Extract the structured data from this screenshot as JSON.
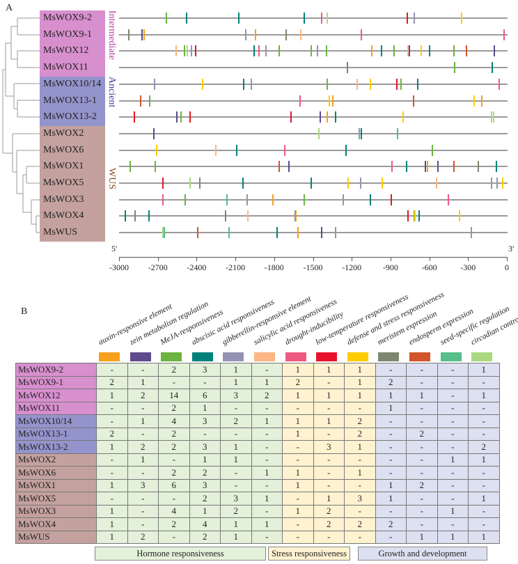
{
  "panel_a_label": "A",
  "panel_b_label": "B",
  "axis": {
    "start_label": "5'",
    "end_label": "3'",
    "min": -3000,
    "max": 0,
    "ticks": [
      "-3000",
      "-2700",
      "-2400",
      "-2100",
      "-1800",
      "-1500",
      "-1200",
      "-900",
      "-600",
      "-300",
      "0"
    ]
  },
  "groups": [
    {
      "name": "Intermediate",
      "color": "#D88FCE",
      "text_color": "#B43AA6",
      "rows": [
        0,
        3
      ]
    },
    {
      "name": "Ancient",
      "color": "#9494CC",
      "text_color": "#3A3A9A",
      "rows": [
        4,
        6
      ]
    },
    {
      "name": "WUS",
      "color": "#C4A19E",
      "text_color": "#8A4A1A",
      "rows": [
        7,
        13
      ]
    }
  ],
  "elements": [
    {
      "name": "auxin-responsive element",
      "color": "#F7A01D",
      "category": "hormone"
    },
    {
      "name": "zein metabolism regulation",
      "color": "#5E4A8C",
      "category": "hormone"
    },
    {
      "name": "MeJA-responsiveness",
      "color": "#6DB33F",
      "category": "hormone"
    },
    {
      "name": "abscisic acid responsiveness",
      "color": "#00827A",
      "category": "hormone"
    },
    {
      "name": "gibberellin-responsive element",
      "color": "#9593B3",
      "category": "hormone"
    },
    {
      "name": "salicylic acid responsiveness",
      "color": "#FDB683",
      "category": "hormone"
    },
    {
      "name": "drought-inducibility",
      "color": "#EE5A82",
      "category": "stress"
    },
    {
      "name": "low-temperature responsiveness",
      "color": "#E8132A",
      "category": "stress"
    },
    {
      "name": "defense and stress responsiveness",
      "color": "#FFCC00",
      "category": "stress"
    },
    {
      "name": "meristem expression",
      "color": "#7F8670",
      "category": "growth"
    },
    {
      "name": "endosperm expression",
      "color": "#D2552E",
      "category": "growth"
    },
    {
      "name": "seed-specific regulation",
      "color": "#55BE8A",
      "category": "growth"
    },
    {
      "name": "circadian control",
      "color": "#AAD880",
      "category": "growth"
    }
  ],
  "categories": [
    {
      "key": "hormone",
      "label": "Hormone responsiveness",
      "color": "#E3F0DA"
    },
    {
      "key": "stress",
      "label": "Stress responsiveness",
      "color": "#FEF2D0"
    },
    {
      "key": "growth",
      "label": "Growth and development",
      "color": "#DDE0F0"
    }
  ],
  "genes": [
    {
      "name": "MsWOX9-2",
      "counts": [
        "-",
        "-",
        "2",
        "3",
        "1",
        "-",
        "1",
        "1",
        "1",
        "-",
        "-",
        "-",
        "1"
      ],
      "marks": [
        [
          -2660,
          2
        ],
        [
          -2506,
          3
        ],
        [
          -2096,
          3
        ],
        [
          -1586,
          3
        ],
        [
          -1446,
          6
        ],
        [
          -1404,
          12
        ],
        [
          -778,
          7
        ],
        [
          -724,
          4
        ],
        [
          -352,
          8
        ]
      ]
    },
    {
      "name": "MsWOX9-1",
      "counts": [
        "2",
        "1",
        "-",
        "-",
        "1",
        "1",
        "2",
        "-",
        "1",
        "2",
        "-",
        "-",
        "-"
      ],
      "marks": [
        [
          -2956,
          9
        ],
        [
          -2854,
          1
        ],
        [
          -2834,
          0
        ],
        [
          -2044,
          4
        ],
        [
          -1964,
          0
        ],
        [
          -1724,
          9
        ],
        [
          -1612,
          5
        ],
        [
          -1138,
          6
        ],
        [
          -22,
          6
        ]
      ]
    },
    {
      "name": "MsWOX12",
      "counts": [
        "1",
        "2",
        "14",
        "6",
        "3",
        "2",
        "1",
        "1",
        "1",
        "1",
        "1",
        "-",
        "1"
      ],
      "marks": [
        [
          -2586,
          5
        ],
        [
          -2520,
          2
        ],
        [
          -2500,
          12
        ],
        [
          -2468,
          4
        ],
        [
          -2436,
          7
        ],
        [
          -1974,
          3
        ],
        [
          -1938,
          6
        ],
        [
          -1882,
          4
        ],
        [
          -1782,
          2
        ],
        [
          -1532,
          2
        ],
        [
          -1482,
          4
        ],
        [
          -1408,
          2
        ],
        [
          -1056,
          0
        ],
        [
          -982,
          3
        ],
        [
          -880,
          2
        ],
        [
          -774,
          5
        ],
        [
          -764,
          1
        ],
        [
          -670,
          8
        ],
        [
          -604,
          3
        ],
        [
          -412,
          2
        ],
        [
          -316,
          10
        ],
        [
          -100,
          1
        ]
      ]
    },
    {
      "name": "MsWOX11",
      "counts": [
        "-",
        "-",
        "2",
        "1",
        "-",
        "-",
        "-",
        "-",
        "-",
        "1",
        "-",
        "-",
        "-"
      ],
      "marks": [
        [
          -1248,
          9
        ],
        [
          -408,
          2
        ],
        [
          -116,
          3
        ]
      ]
    },
    {
      "name": "MsWOX10/14",
      "counts": [
        "-",
        "1",
        "4",
        "3",
        "2",
        "1",
        "1",
        "1",
        "2",
        "-",
        "-",
        "-",
        "-"
      ],
      "marks": [
        [
          -2754,
          4
        ],
        [
          -2382,
          8
        ],
        [
          -2058,
          3
        ],
        [
          -1996,
          4
        ],
        [
          -1404,
          2
        ],
        [
          -1170,
          5
        ],
        [
          -1068,
          8
        ],
        [
          -858,
          7
        ],
        [
          -830,
          2
        ],
        [
          -698,
          3
        ],
        [
          -60,
          6
        ]
      ]
    },
    {
      "name": "MsWOX13-1",
      "counts": [
        "2",
        "-",
        "2",
        "-",
        "-",
        "-",
        "1",
        "-",
        "2",
        "-",
        "2",
        "-",
        "-"
      ],
      "marks": [
        [
          -2862,
          10
        ],
        [
          -2792,
          2
        ],
        [
          -1618,
          6
        ],
        [
          -1390,
          8
        ],
        [
          -1362,
          0
        ],
        [
          -728,
          10
        ],
        [
          -254,
          8
        ],
        [
          -198,
          0
        ]
      ]
    },
    {
      "name": "MsWOX13-2",
      "counts": [
        "1",
        "2",
        "2",
        "3",
        "1",
        "-",
        "-",
        "3",
        "1",
        "-",
        "-",
        "-",
        "2"
      ],
      "marks": [
        [
          -2914,
          7
        ],
        [
          -2582,
          1
        ],
        [
          -2546,
          2
        ],
        [
          -2480,
          7
        ],
        [
          -1688,
          7
        ],
        [
          -1458,
          1
        ],
        [
          -1406,
          0
        ],
        [
          -1338,
          3
        ],
        [
          -812,
          8
        ],
        [
          -118,
          12
        ],
        [
          -102,
          12
        ]
      ]
    },
    {
      "name": "MsWOX2",
      "counts": [
        "-",
        "1",
        "-",
        "1",
        "1",
        "-",
        "-",
        "-",
        "-",
        "-",
        "-",
        "1",
        "1"
      ],
      "marks": [
        [
          -2760,
          1
        ],
        [
          -1472,
          12
        ],
        [
          -1156,
          4
        ],
        [
          -1140,
          3
        ],
        [
          -854,
          11
        ]
      ]
    },
    {
      "name": "MsWOX6",
      "counts": [
        "-",
        "-",
        "2",
        "2",
        "-",
        "1",
        "1",
        "-",
        "1",
        "-",
        "-",
        "-",
        "-"
      ],
      "marks": [
        [
          -2736,
          8
        ],
        [
          -2278,
          5
        ],
        [
          -2110,
          3
        ],
        [
          -1738,
          6
        ],
        [
          -1260,
          3
        ],
        [
          -580,
          2
        ]
      ]
    },
    {
      "name": "MsWOX1",
      "counts": [
        "1",
        "3",
        "6",
        "3",
        "-",
        "-",
        "1",
        "-",
        "-",
        "1",
        "2",
        "-",
        "-"
      ],
      "marks": [
        [
          -2946,
          2
        ],
        [
          -2748,
          2
        ],
        [
          -1782,
          10
        ],
        [
          -1702,
          1
        ],
        [
          -900,
          6
        ],
        [
          -784,
          3
        ],
        [
          -636,
          1
        ],
        [
          -620,
          0
        ],
        [
          -538,
          1
        ],
        [
          -414,
          10
        ],
        [
          -224,
          9
        ],
        [
          -80,
          3
        ]
      ]
    },
    {
      "name": "MsWOX5",
      "counts": [
        "-",
        "-",
        "-",
        "2",
        "3",
        "1",
        "-",
        "1",
        "3",
        "1",
        "-",
        "-",
        "1"
      ],
      "marks": [
        [
          -2690,
          7
        ],
        [
          -2480,
          12
        ],
        [
          -2402,
          9
        ],
        [
          -2062,
          3
        ],
        [
          -1528,
          3
        ],
        [
          -1244,
          8
        ],
        [
          -1146,
          4
        ],
        [
          -974,
          8
        ],
        [
          -550,
          5
        ],
        [
          -120,
          4
        ],
        [
          -76,
          4
        ],
        [
          -32,
          8
        ]
      ]
    },
    {
      "name": "MsWOX3",
      "counts": [
        "1",
        "-",
        "4",
        "1",
        "2",
        "-",
        "1",
        "2",
        "-",
        "-",
        "-",
        "1",
        "-"
      ],
      "marks": [
        [
          -2692,
          6
        ],
        [
          -2514,
          2
        ],
        [
          -2190,
          11
        ],
        [
          -2030,
          4
        ],
        [
          -1830,
          0
        ],
        [
          -1584,
          2
        ],
        [
          -1280,
          4
        ],
        [
          -1066,
          3
        ],
        [
          -904,
          7
        ],
        [
          -458,
          6
        ]
      ]
    },
    {
      "name": "MsWOX4",
      "counts": [
        "1",
        "-",
        "2",
        "4",
        "1",
        "1",
        "-",
        "2",
        "2",
        "2",
        "-",
        "-",
        "-"
      ],
      "marks": [
        [
          -2986,
          3
        ],
        [
          -2906,
          9
        ],
        [
          -2798,
          3
        ],
        [
          -2198,
          9
        ],
        [
          -2028,
          5
        ],
        [
          -1656,
          9
        ],
        [
          -1648,
          0
        ],
        [
          -772,
          7
        ],
        [
          -726,
          2
        ],
        [
          -716,
          8
        ],
        [
          -686,
          3
        ],
        [
          -370,
          8
        ]
      ]
    },
    {
      "name": "MsWUS",
      "counts": [
        "1",
        "2",
        "-",
        "2",
        "1",
        "-",
        "-",
        "-",
        "-",
        "-",
        "1",
        "1",
        "1"
      ],
      "marks": [
        [
          -2688,
          12
        ],
        [
          -2680,
          11
        ],
        [
          -2416,
          10
        ],
        [
          -2172,
          11
        ],
        [
          -1798,
          3
        ],
        [
          -1634,
          0
        ],
        [
          -1450,
          1
        ],
        [
          -1338,
          4
        ],
        [
          -276,
          4
        ]
      ]
    }
  ]
}
